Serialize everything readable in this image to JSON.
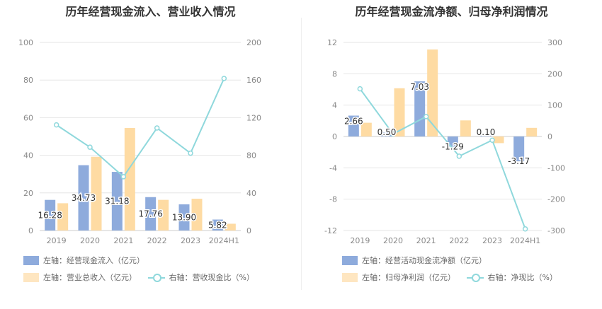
{
  "chart_data": [
    {
      "type": "bar",
      "title": "历年经营现金流入、营业收入情况",
      "categories": [
        "2019",
        "2020",
        "2021",
        "2022",
        "2023",
        "2024H1"
      ],
      "left_axis": {
        "ylim": [
          0,
          100
        ],
        "ticks": [
          "0",
          "20",
          "40",
          "60",
          "80",
          "100"
        ]
      },
      "right_axis": {
        "ylim": [
          0,
          200
        ],
        "ticks": [
          "0",
          "40",
          "80",
          "120",
          "160",
          "200"
        ]
      },
      "series": [
        {
          "name": "左轴：经营现金流入（亿元）",
          "axis": "left",
          "kind": "bar",
          "color": "#8eabdc",
          "values": [
            16.28,
            34.73,
            31.18,
            17.76,
            13.9,
            5.82
          ],
          "labels": [
            "16.28",
            "34.73",
            "31.18",
            "17.76",
            "13.90",
            "5.82"
          ]
        },
        {
          "name": "左轴：营业总收入（亿元）",
          "axis": "left",
          "kind": "bar",
          "color": "#fedba3",
          "values": [
            14.5,
            39.2,
            54.5,
            16.3,
            16.9,
            3.6
          ]
        },
        {
          "name": "右轴：营收现金比（%）",
          "axis": "right",
          "kind": "line",
          "color": "#8fd8dc",
          "values": [
            112.3,
            88.6,
            57.2,
            109.0,
            82.2,
            161.7
          ]
        }
      ],
      "grid": true
    },
    {
      "type": "bar",
      "title": "历年经营现金流净额、归母净利润情况",
      "categories": [
        "2019",
        "2020",
        "2021",
        "2022",
        "2023",
        "2024H1"
      ],
      "left_axis": {
        "ylim": [
          -12,
          12
        ],
        "ticks": [
          "-12",
          "-8",
          "-4",
          "0",
          "4",
          "8",
          "12"
        ]
      },
      "right_axis": {
        "ylim": [
          -300,
          300
        ],
        "ticks": [
          "-300",
          "-200",
          "-100",
          "0",
          "100",
          "200",
          "300"
        ]
      },
      "series": [
        {
          "name": "左轴：经营活动现金流净额（亿元）",
          "axis": "left",
          "kind": "bar",
          "color": "#8eabdc",
          "values": [
            2.66,
            0.5,
            7.03,
            -1.29,
            0.1,
            -3.17
          ],
          "labels": [
            "2.66",
            "0.50",
            "7.03",
            "-1.29",
            "0.10",
            "-3.17"
          ]
        },
        {
          "name": "左轴：归母净利润（亿元）",
          "axis": "left",
          "kind": "bar",
          "color": "#fedba3",
          "values": [
            1.75,
            6.15,
            11.1,
            2.05,
            -0.85,
            1.1
          ]
        },
        {
          "name": "右轴：净现比（%）",
          "axis": "right",
          "kind": "line",
          "color": "#8fd8dc",
          "values": [
            152,
            8.1,
            63.3,
            -63,
            -11.8,
            -295
          ]
        }
      ],
      "grid": true
    }
  ]
}
